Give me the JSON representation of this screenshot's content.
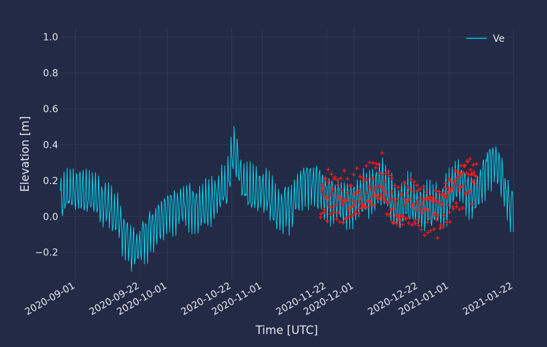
{
  "chart_data": {
    "type": "line",
    "xlabel": "Time [UTC]",
    "ylabel": "Elevation [m]",
    "xlim": [
      "2020-08-27",
      "2021-01-22"
    ],
    "ylim": [
      -0.35,
      1.05
    ],
    "grid": true,
    "legend_position": "top-right",
    "y_ticks": [
      -0.2,
      0.0,
      0.2,
      0.4,
      0.6,
      0.8,
      1.0
    ],
    "y_tick_labels": [
      "−0.2",
      "0.0",
      "0.2",
      "0.4",
      "0.6",
      "0.8",
      "1.0"
    ],
    "x_ticks": [
      "2020-09-01",
      "2020-09-22",
      "2020-10-01",
      "2020-10-22",
      "2020-11-01",
      "2020-11-22",
      "2020-12-01",
      "2020-12-22",
      "2021-01-01",
      "2021-01-22"
    ],
    "x_tick_labels": [
      "2020-09-01",
      "2020-09-22",
      "2020-10-01",
      "2020-10-22",
      "2020-11-01",
      "2020-11-22",
      "2020-12-01",
      "2020-12-22",
      "2021-01-01",
      "2021-01-22"
    ],
    "colors": {
      "background": "#222a45",
      "series_line": "#00e5ff",
      "markers": "#ff1a1a",
      "text": "#e6e8ef",
      "grid": "#2f3858"
    },
    "series": [
      {
        "name": "Ve",
        "style": "line",
        "color": "#00e5ff",
        "x": [
          "2020-08-27",
          "2020-08-29",
          "2020-08-31",
          "2020-09-02",
          "2020-09-04",
          "2020-09-06",
          "2020-09-08",
          "2020-09-10",
          "2020-09-12",
          "2020-09-14",
          "2020-09-16",
          "2020-09-18",
          "2020-09-19",
          "2020-09-21",
          "2020-09-23",
          "2020-09-25",
          "2020-09-27",
          "2020-09-29",
          "2020-10-01",
          "2020-10-03",
          "2020-10-05",
          "2020-10-07",
          "2020-10-09",
          "2020-10-11",
          "2020-10-13",
          "2020-10-15",
          "2020-10-17",
          "2020-10-19",
          "2020-10-20",
          "2020-10-21",
          "2020-10-22",
          "2020-10-23",
          "2020-10-25",
          "2020-10-27",
          "2020-10-29",
          "2020-10-31",
          "2020-11-02",
          "2020-11-04",
          "2020-11-06",
          "2020-11-08",
          "2020-11-10",
          "2020-11-12",
          "2020-11-14",
          "2020-11-16",
          "2020-11-18",
          "2020-11-20",
          "2020-11-22",
          "2020-11-24",
          "2020-11-26",
          "2020-11-28",
          "2020-11-30",
          "2020-12-02",
          "2020-12-04",
          "2020-12-06",
          "2020-12-08",
          "2020-12-10",
          "2020-12-12",
          "2020-12-14",
          "2020-12-16",
          "2020-12-18",
          "2020-12-20",
          "2020-12-22",
          "2020-12-24",
          "2020-12-26",
          "2020-12-28",
          "2020-12-30",
          "2021-01-01",
          "2021-01-03",
          "2021-01-05",
          "2021-01-07",
          "2021-01-09",
          "2021-01-11",
          "2021-01-13",
          "2021-01-14",
          "2021-01-16",
          "2021-01-18",
          "2021-01-20",
          "2021-01-21",
          "2021-01-22"
        ],
        "y": [
          0.1,
          0.12,
          0.14,
          0.15,
          0.13,
          0.12,
          0.1,
          0.08,
          0.05,
          0.0,
          -0.06,
          -0.12,
          -0.17,
          -0.19,
          -0.12,
          -0.07,
          -0.04,
          0.0,
          0.04,
          0.05,
          0.06,
          0.06,
          0.05,
          0.03,
          0.04,
          0.08,
          0.13,
          0.15,
          0.14,
          0.2,
          0.35,
          0.38,
          0.22,
          0.15,
          0.12,
          0.15,
          0.14,
          0.08,
          0.02,
          0.06,
          0.05,
          0.1,
          0.18,
          0.22,
          0.18,
          0.14,
          0.13,
          0.12,
          0.1,
          0.09,
          0.08,
          0.1,
          0.12,
          0.14,
          0.16,
          0.18,
          0.12,
          0.07,
          0.05,
          0.07,
          0.08,
          0.06,
          0.05,
          0.04,
          0.05,
          0.08,
          0.12,
          0.18,
          0.2,
          0.15,
          0.12,
          0.17,
          0.25,
          0.32,
          0.3,
          0.22,
          0.1,
          0.05,
          0.08
        ]
      },
      {
        "name": "",
        "style": "markers",
        "marker": "+",
        "color": "#ff1a1a",
        "x": [
          "2020-11-20",
          "2020-11-22",
          "2020-11-24",
          "2020-11-26",
          "2020-11-28",
          "2020-11-30",
          "2020-12-02",
          "2020-12-04",
          "2020-12-06",
          "2020-12-08",
          "2020-12-10",
          "2020-12-12",
          "2020-12-14",
          "2020-12-16",
          "2020-12-18",
          "2020-12-20",
          "2020-12-22",
          "2020-12-24",
          "2020-12-26",
          "2020-12-28",
          "2020-12-30",
          "2021-01-01",
          "2021-01-03",
          "2021-01-05",
          "2021-01-07",
          "2021-01-09",
          "2021-01-10"
        ],
        "y": [
          0.1,
          0.12,
          0.13,
          0.1,
          0.09,
          0.08,
          0.1,
          0.12,
          0.14,
          0.17,
          0.19,
          0.12,
          0.06,
          0.04,
          0.06,
          0.08,
          0.06,
          0.05,
          0.04,
          0.03,
          0.06,
          0.1,
          0.16,
          0.2,
          0.22,
          0.22,
          0.2
        ]
      }
    ]
  }
}
